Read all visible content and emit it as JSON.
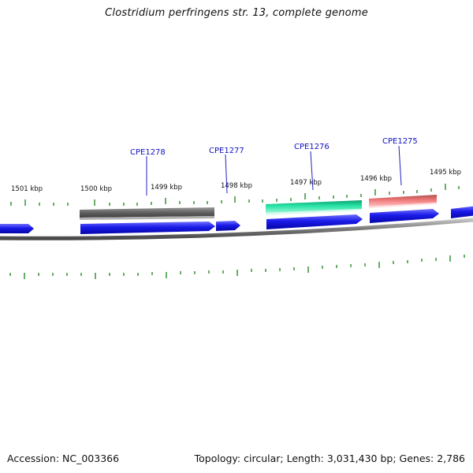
{
  "title": "Clostridium perfringens str. 13, complete genome",
  "footer": {
    "accession": "Accession: NC_003366",
    "summary": "Topology: circular; Length: 3,031,430 bp; Genes: 2,786"
  },
  "colors": {
    "backbone": "#8a8a8a",
    "cds_forward": "#1515e6",
    "tick": "#2a8a2a",
    "label": "#1010c0",
    "feature_gray": "#6e6e6e",
    "feature_green": "#2ee8a8",
    "feature_red": "#f08080"
  },
  "kbp_labels": [
    {
      "id": "1501",
      "text": "1501 kbp"
    },
    {
      "id": "1500",
      "text": "1500 kbp"
    },
    {
      "id": "1499",
      "text": "1499 kbp"
    },
    {
      "id": "1498",
      "text": "1498 kbp"
    },
    {
      "id": "1497",
      "text": "1497 kbp"
    },
    {
      "id": "1496",
      "text": "1496 kbp"
    },
    {
      "id": "1495",
      "text": "1495 kbp"
    }
  ],
  "genes": [
    {
      "id": "CPE1278",
      "label": "CPE1278"
    },
    {
      "id": "CPE1277",
      "label": "CPE1277"
    },
    {
      "id": "CPE1276",
      "label": "CPE1276"
    },
    {
      "id": "CPE1275",
      "label": "CPE1275"
    }
  ]
}
